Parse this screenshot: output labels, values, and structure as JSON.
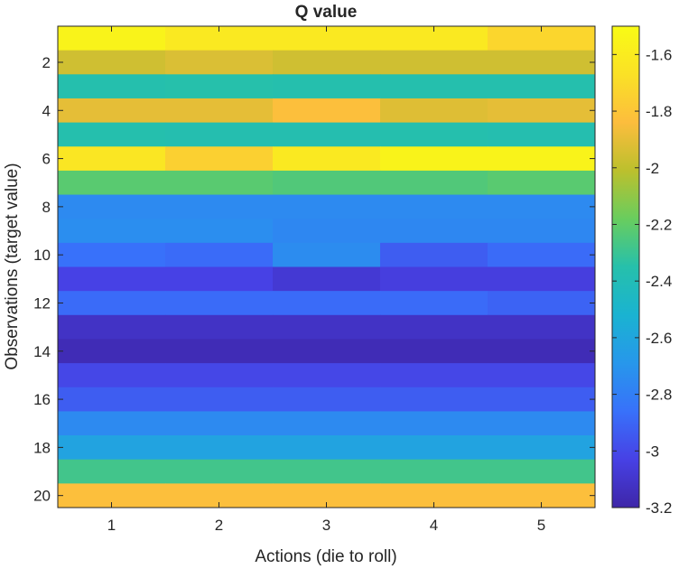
{
  "chart_data": {
    "type": "heatmap",
    "title": "Q value",
    "xlabel": "Actions (die to roll)",
    "ylabel": "Observations (target value)",
    "x": [
      1,
      2,
      3,
      4,
      5
    ],
    "y": [
      1,
      2,
      3,
      4,
      5,
      6,
      7,
      8,
      9,
      10,
      11,
      12,
      13,
      14,
      15,
      16,
      17,
      18,
      19,
      20
    ],
    "xticks": [
      1,
      2,
      3,
      4,
      5
    ],
    "yticks": [
      2,
      4,
      6,
      8,
      10,
      12,
      14,
      16,
      18,
      20
    ],
    "values": [
      [
        -1.55,
        -1.62,
        -1.62,
        -1.62,
        -1.72
      ],
      [
        -1.96,
        -1.93,
        -1.96,
        -1.96,
        -1.96
      ],
      [
        -2.36,
        -2.35,
        -2.36,
        -2.36,
        -2.36
      ],
      [
        -1.9,
        -1.9,
        -1.83,
        -1.92,
        -1.9
      ],
      [
        -2.36,
        -2.37,
        -2.37,
        -2.36,
        -2.37
      ],
      [
        -1.64,
        -1.75,
        -1.62,
        -1.55,
        -1.55
      ],
      [
        -2.22,
        -2.22,
        -2.24,
        -2.24,
        -2.22
      ],
      [
        -2.75,
        -2.75,
        -2.75,
        -2.75,
        -2.75
      ],
      [
        -2.73,
        -2.73,
        -2.76,
        -2.76,
        -2.76
      ],
      [
        -2.86,
        -2.88,
        -2.74,
        -2.93,
        -2.88
      ],
      [
        -3.03,
        -3.03,
        -3.08,
        -3.05,
        -3.05
      ],
      [
        -2.88,
        -2.88,
        -2.88,
        -2.88,
        -2.91
      ],
      [
        -3.12,
        -3.12,
        -3.12,
        -3.12,
        -3.12
      ],
      [
        -3.16,
        -3.16,
        -3.16,
        -3.16,
        -3.16
      ],
      [
        -3.01,
        -3.01,
        -3.01,
        -3.01,
        -3.01
      ],
      [
        -2.93,
        -2.93,
        -2.93,
        -2.93,
        -2.93
      ],
      [
        -2.75,
        -2.75,
        -2.75,
        -2.75,
        -2.75
      ],
      [
        -2.62,
        -2.62,
        -2.62,
        -2.62,
        -2.62
      ],
      [
        -2.28,
        -2.28,
        -2.28,
        -2.28,
        -2.28
      ],
      [
        -1.83,
        -1.83,
        -1.83,
        -1.83,
        -1.83
      ]
    ],
    "colorbar": {
      "range": [
        -3.2,
        -1.5
      ],
      "ticks": [
        -1.6,
        -1.8,
        -2,
        -2.2,
        -2.4,
        -2.6,
        -2.8,
        -3,
        -3.2
      ],
      "tick_labels": [
        "-1.6",
        "-1.8",
        "-2",
        "-2.2",
        "-2.4",
        "-2.6",
        "-2.8",
        "-3",
        "-3.2"
      ],
      "colormap": "parula"
    },
    "colormap_stops": [
      "#3e26a8",
      "#4741e5",
      "#3871fa",
      "#2797eb",
      "#1ab3d1",
      "#26c0ab",
      "#69cd5e",
      "#bcc02d",
      "#fcbd3d",
      "#fae126",
      "#f9fb15"
    ]
  }
}
